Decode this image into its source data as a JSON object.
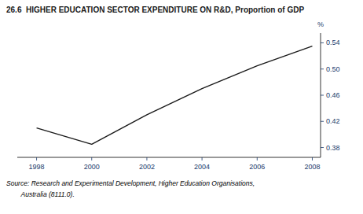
{
  "chart_data": {
    "type": "line",
    "title": "26.6  HIGHER EDUCATION SECTOR EXPENDITURE ON R&D, Proportion of GDP",
    "ylabel": "%",
    "x": [
      1998,
      2000,
      2002,
      2004,
      2006,
      2008
    ],
    "values": [
      0.41,
      0.385,
      0.43,
      0.47,
      0.505,
      0.535
    ],
    "color": "#1a1a1a",
    "xlim": [
      1997.3,
      2008.3
    ],
    "xticks": [
      1998,
      2000,
      2002,
      2004,
      2006,
      2008
    ],
    "ylim": [
      0.365,
      0.555
    ],
    "yticks": [
      0.38,
      0.42,
      0.46,
      {
        "value": 0.5,
        "label": "0.50"
      },
      0.54
    ],
    "grid": false,
    "annotations": [
      "Source: Research and Experimental Development, Higher Education Organisations,",
      "        Australia (8111.0)."
    ]
  }
}
